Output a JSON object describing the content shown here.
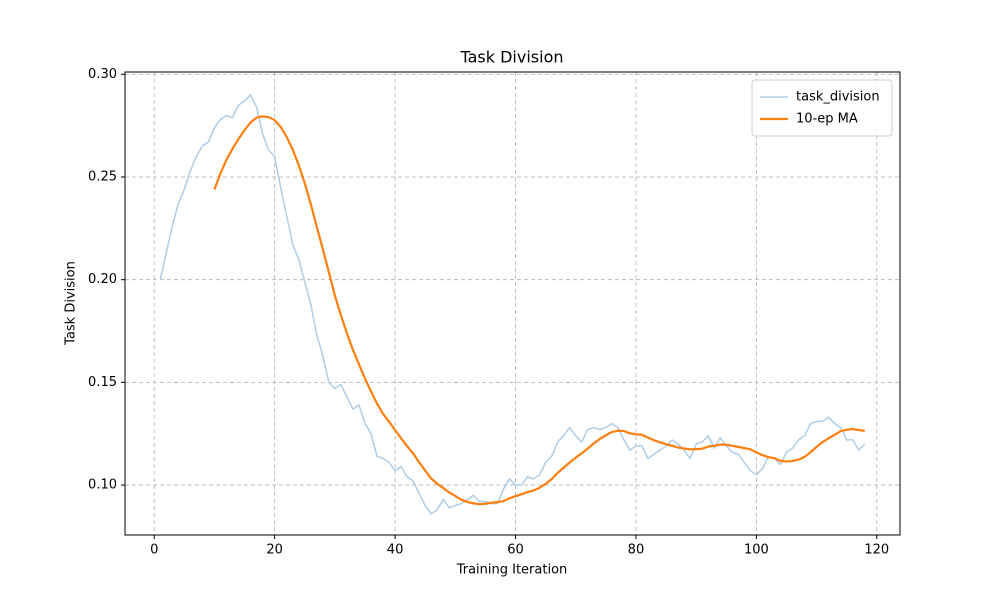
{
  "chart_data": {
    "type": "line",
    "title": "Task Division",
    "x_label": "Training Iteration",
    "y_label": "Task Division",
    "x": [
      1,
      2,
      3,
      4,
      5,
      6,
      7,
      8,
      9,
      10,
      11,
      12,
      13,
      14,
      15,
      16,
      17,
      18,
      19,
      20,
      21,
      22,
      23,
      24,
      25,
      26,
      27,
      28,
      29,
      30,
      31,
      32,
      33,
      34,
      35,
      36,
      37,
      38,
      39,
      40,
      41,
      42,
      43,
      44,
      45,
      46,
      47,
      48,
      49,
      50,
      51,
      52,
      53,
      54,
      55,
      56,
      57,
      58,
      59,
      60,
      61,
      62,
      63,
      64,
      65,
      66,
      67,
      68,
      69,
      70,
      71,
      72,
      73,
      74,
      75,
      76,
      77,
      78,
      79,
      80,
      81,
      82,
      83,
      84,
      85,
      86,
      87,
      88,
      89,
      90,
      91,
      92,
      93,
      94,
      95,
      96,
      97,
      98,
      99,
      100,
      101,
      102,
      103,
      104,
      105,
      106,
      107,
      108,
      109,
      110,
      111,
      112,
      113,
      114,
      115,
      116,
      117,
      118
    ],
    "series": [
      {
        "name": "task_division",
        "color": "#aecde6",
        "width": 1.5,
        "values": [
          0.2,
          0.213,
          0.226,
          0.237,
          0.244,
          0.253,
          0.26,
          0.265,
          0.267,
          0.274,
          0.278,
          0.28,
          0.279,
          0.285,
          0.287,
          0.29,
          0.284,
          0.271,
          0.263,
          0.26,
          0.245,
          0.231,
          0.217,
          0.21,
          0.199,
          0.188,
          0.173,
          0.163,
          0.15,
          0.147,
          0.149,
          0.143,
          0.137,
          0.139,
          0.13,
          0.125,
          0.114,
          0.113,
          0.111,
          0.107,
          0.109,
          0.104,
          0.102,
          0.096,
          0.09,
          0.086,
          0.088,
          0.093,
          0.089,
          0.09,
          0.091,
          0.093,
          0.095,
          0.092,
          0.092,
          0.091,
          0.091,
          0.098,
          0.103,
          0.1,
          0.1,
          0.104,
          0.103,
          0.105,
          0.111,
          0.114,
          0.121,
          0.124,
          0.128,
          0.124,
          0.121,
          0.127,
          0.128,
          0.127,
          0.128,
          0.13,
          0.128,
          0.122,
          0.117,
          0.119,
          0.119,
          0.113,
          0.115,
          0.117,
          0.119,
          0.122,
          0.12,
          0.117,
          0.113,
          0.12,
          0.121,
          0.124,
          0.118,
          0.123,
          0.119,
          0.116,
          0.115,
          0.111,
          0.107,
          0.105,
          0.108,
          0.114,
          0.113,
          0.11,
          0.116,
          0.118,
          0.122,
          0.124,
          0.13,
          0.131,
          0.131,
          0.133,
          0.13,
          0.128,
          0.122,
          0.122,
          0.117,
          0.12
        ]
      },
      {
        "name": "10-ep MA",
        "color": "#ff7f0e",
        "width": 2.2,
        "values": [
          null,
          null,
          null,
          null,
          null,
          null,
          null,
          null,
          null,
          0.2439,
          0.2517,
          0.2584,
          0.2637,
          0.2685,
          0.2728,
          0.2765,
          0.2789,
          0.2795,
          0.2791,
          0.2777,
          0.2744,
          0.2695,
          0.2633,
          0.2558,
          0.247,
          0.2368,
          0.2257,
          0.2149,
          0.2036,
          0.1923,
          0.1827,
          0.1739,
          0.1659,
          0.1588,
          0.1519,
          0.1456,
          0.1397,
          0.1347,
          0.1308,
          0.1268,
          0.1228,
          0.1189,
          0.1154,
          0.1111,
          0.1071,
          0.1032,
          0.1006,
          0.0986,
          0.0964,
          0.0947,
          0.0929,
          0.0918,
          0.0911,
          0.0907,
          0.0909,
          0.0914,
          0.0917,
          0.0922,
          0.0936,
          0.0946,
          0.0955,
          0.0966,
          0.0974,
          0.0987,
          0.1006,
          0.1029,
          0.1059,
          0.1085,
          0.111,
          0.1134,
          0.1155,
          0.1178,
          0.1203,
          0.1225,
          0.1242,
          0.1258,
          0.1265,
          0.1263,
          0.1252,
          0.1247,
          0.1245,
          0.1231,
          0.1218,
          0.1208,
          0.1199,
          0.1191,
          0.1183,
          0.1178,
          0.1174,
          0.1175,
          0.1177,
          0.1188,
          0.1191,
          0.1197,
          0.1197,
          0.1191,
          0.1186,
          0.118,
          0.1174,
          0.1159,
          0.1146,
          0.1136,
          0.1131,
          0.1118,
          0.1115,
          0.1117,
          0.1124,
          0.1137,
          0.116,
          0.1186,
          0.1209,
          0.1228,
          0.1245,
          0.1263,
          0.1269,
          0.1273,
          0.1268,
          0.1264
        ]
      }
    ],
    "xlim": [
      -4.85,
      123.85
    ],
    "ylim": [
      0.0757,
      0.3011
    ],
    "xticks": [
      0,
      20,
      40,
      60,
      80,
      100,
      120
    ],
    "yticks": [
      {
        "value": 0.1,
        "label": "0.10"
      },
      {
        "value": 0.15,
        "label": "0.15"
      },
      {
        "value": 0.2,
        "label": "0.20"
      },
      {
        "value": 0.25,
        "label": "0.25"
      },
      {
        "value": 0.3,
        "label": "0.30"
      }
    ],
    "grid": true,
    "legend": "upper right"
  }
}
